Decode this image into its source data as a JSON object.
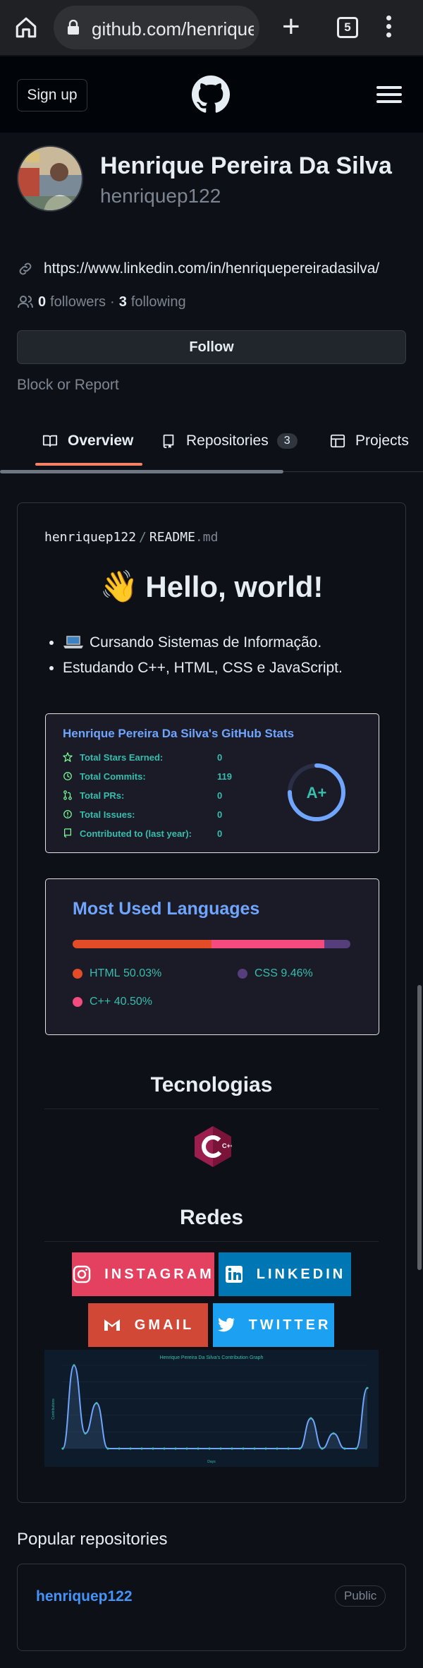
{
  "browser": {
    "url": "github.com/henrique",
    "tab_count": "5"
  },
  "header": {
    "signup_label": "Sign up"
  },
  "profile": {
    "name": "Henrique Pereira Da Silva",
    "login": "henriquep122",
    "website": "https://www.linkedin.com/in/henriquepereiradasilva/",
    "followers_count": "0",
    "followers_label": "followers",
    "separator": "·",
    "following_count": "3",
    "following_label": "following",
    "follow_label": "Follow",
    "block_label": "Block or Report"
  },
  "tabs": [
    {
      "label": "Overview",
      "icon": "book-icon",
      "active": true
    },
    {
      "label": "Repositories",
      "icon": "repo-icon",
      "count": "3"
    },
    {
      "label": "Projects",
      "icon": "table-icon"
    }
  ],
  "readme": {
    "owner": "henriquep122",
    "sep": "/",
    "file": "README",
    "ext": ".md",
    "heading": "Hello, world!",
    "heading_emoji": "👋",
    "bullets": [
      {
        "text": "Cursando Sistemas de Informação.",
        "icon": "laptop-icon"
      },
      {
        "text": "Estudando C++, HTML, CSS e JavaScript."
      }
    ],
    "stats": {
      "title": "Henrique Pereira Da Silva's GitHub Stats",
      "rows": [
        {
          "label": "Total Stars Earned:",
          "value": "0",
          "icon": "star-icon"
        },
        {
          "label": "Total Commits:",
          "value": "119",
          "icon": "history-icon"
        },
        {
          "label": "Total PRs:",
          "value": "0",
          "icon": "pull-request-icon"
        },
        {
          "label": "Total Issues:",
          "value": "0",
          "icon": "issue-icon"
        },
        {
          "label": "Contributed to (last year):",
          "value": "0",
          "icon": "repo-icon"
        }
      ],
      "rank": "A+",
      "rank_progress": 0.75
    },
    "languages": {
      "title": "Most Used Languages",
      "items": [
        {
          "name": "HTML",
          "percent": "50.03%",
          "value": 50.03,
          "color": "#e34c26"
        },
        {
          "name": "C++",
          "percent": "40.50%",
          "value": 40.5,
          "color": "#f34b7d"
        },
        {
          "name": "CSS",
          "percent": "9.46%",
          "value": 9.46,
          "color": "#563d7c"
        }
      ]
    },
    "tech_heading": "Tecnologias",
    "tech_logo_text": "C++",
    "social_heading": "Redes",
    "social": [
      {
        "label": "INSTAGRAM",
        "color": "#e4405f",
        "icon": "instagram-icon"
      },
      {
        "label": "LINKEDIN",
        "color": "#0077b5",
        "icon": "linkedin-icon"
      },
      {
        "label": "GMAIL",
        "color": "#d14836",
        "icon": "gmail-icon"
      },
      {
        "label": "TWITTER",
        "color": "#1ca1f2",
        "icon": "twitter-icon"
      }
    ],
    "graph": {
      "title": "Henrique Pereira Da Silva's Contribution Graph",
      "ylabel": "Contributions",
      "xlabel": "Days",
      "values": [
        0,
        11,
        2,
        6,
        0,
        0,
        0,
        0,
        0,
        0,
        0,
        0,
        0,
        0,
        0,
        0,
        0,
        0,
        0,
        0,
        0,
        0,
        4,
        0,
        2,
        0,
        0,
        8
      ]
    }
  },
  "popular": {
    "heading": "Popular repositories",
    "repos": [
      {
        "name": "henriquep122",
        "visibility": "Public"
      }
    ]
  },
  "colors": {
    "accent_underline": "#f78166",
    "link": "#4493f8",
    "stats_title": "#70a5fd",
    "stats_text": "#38bdae"
  }
}
